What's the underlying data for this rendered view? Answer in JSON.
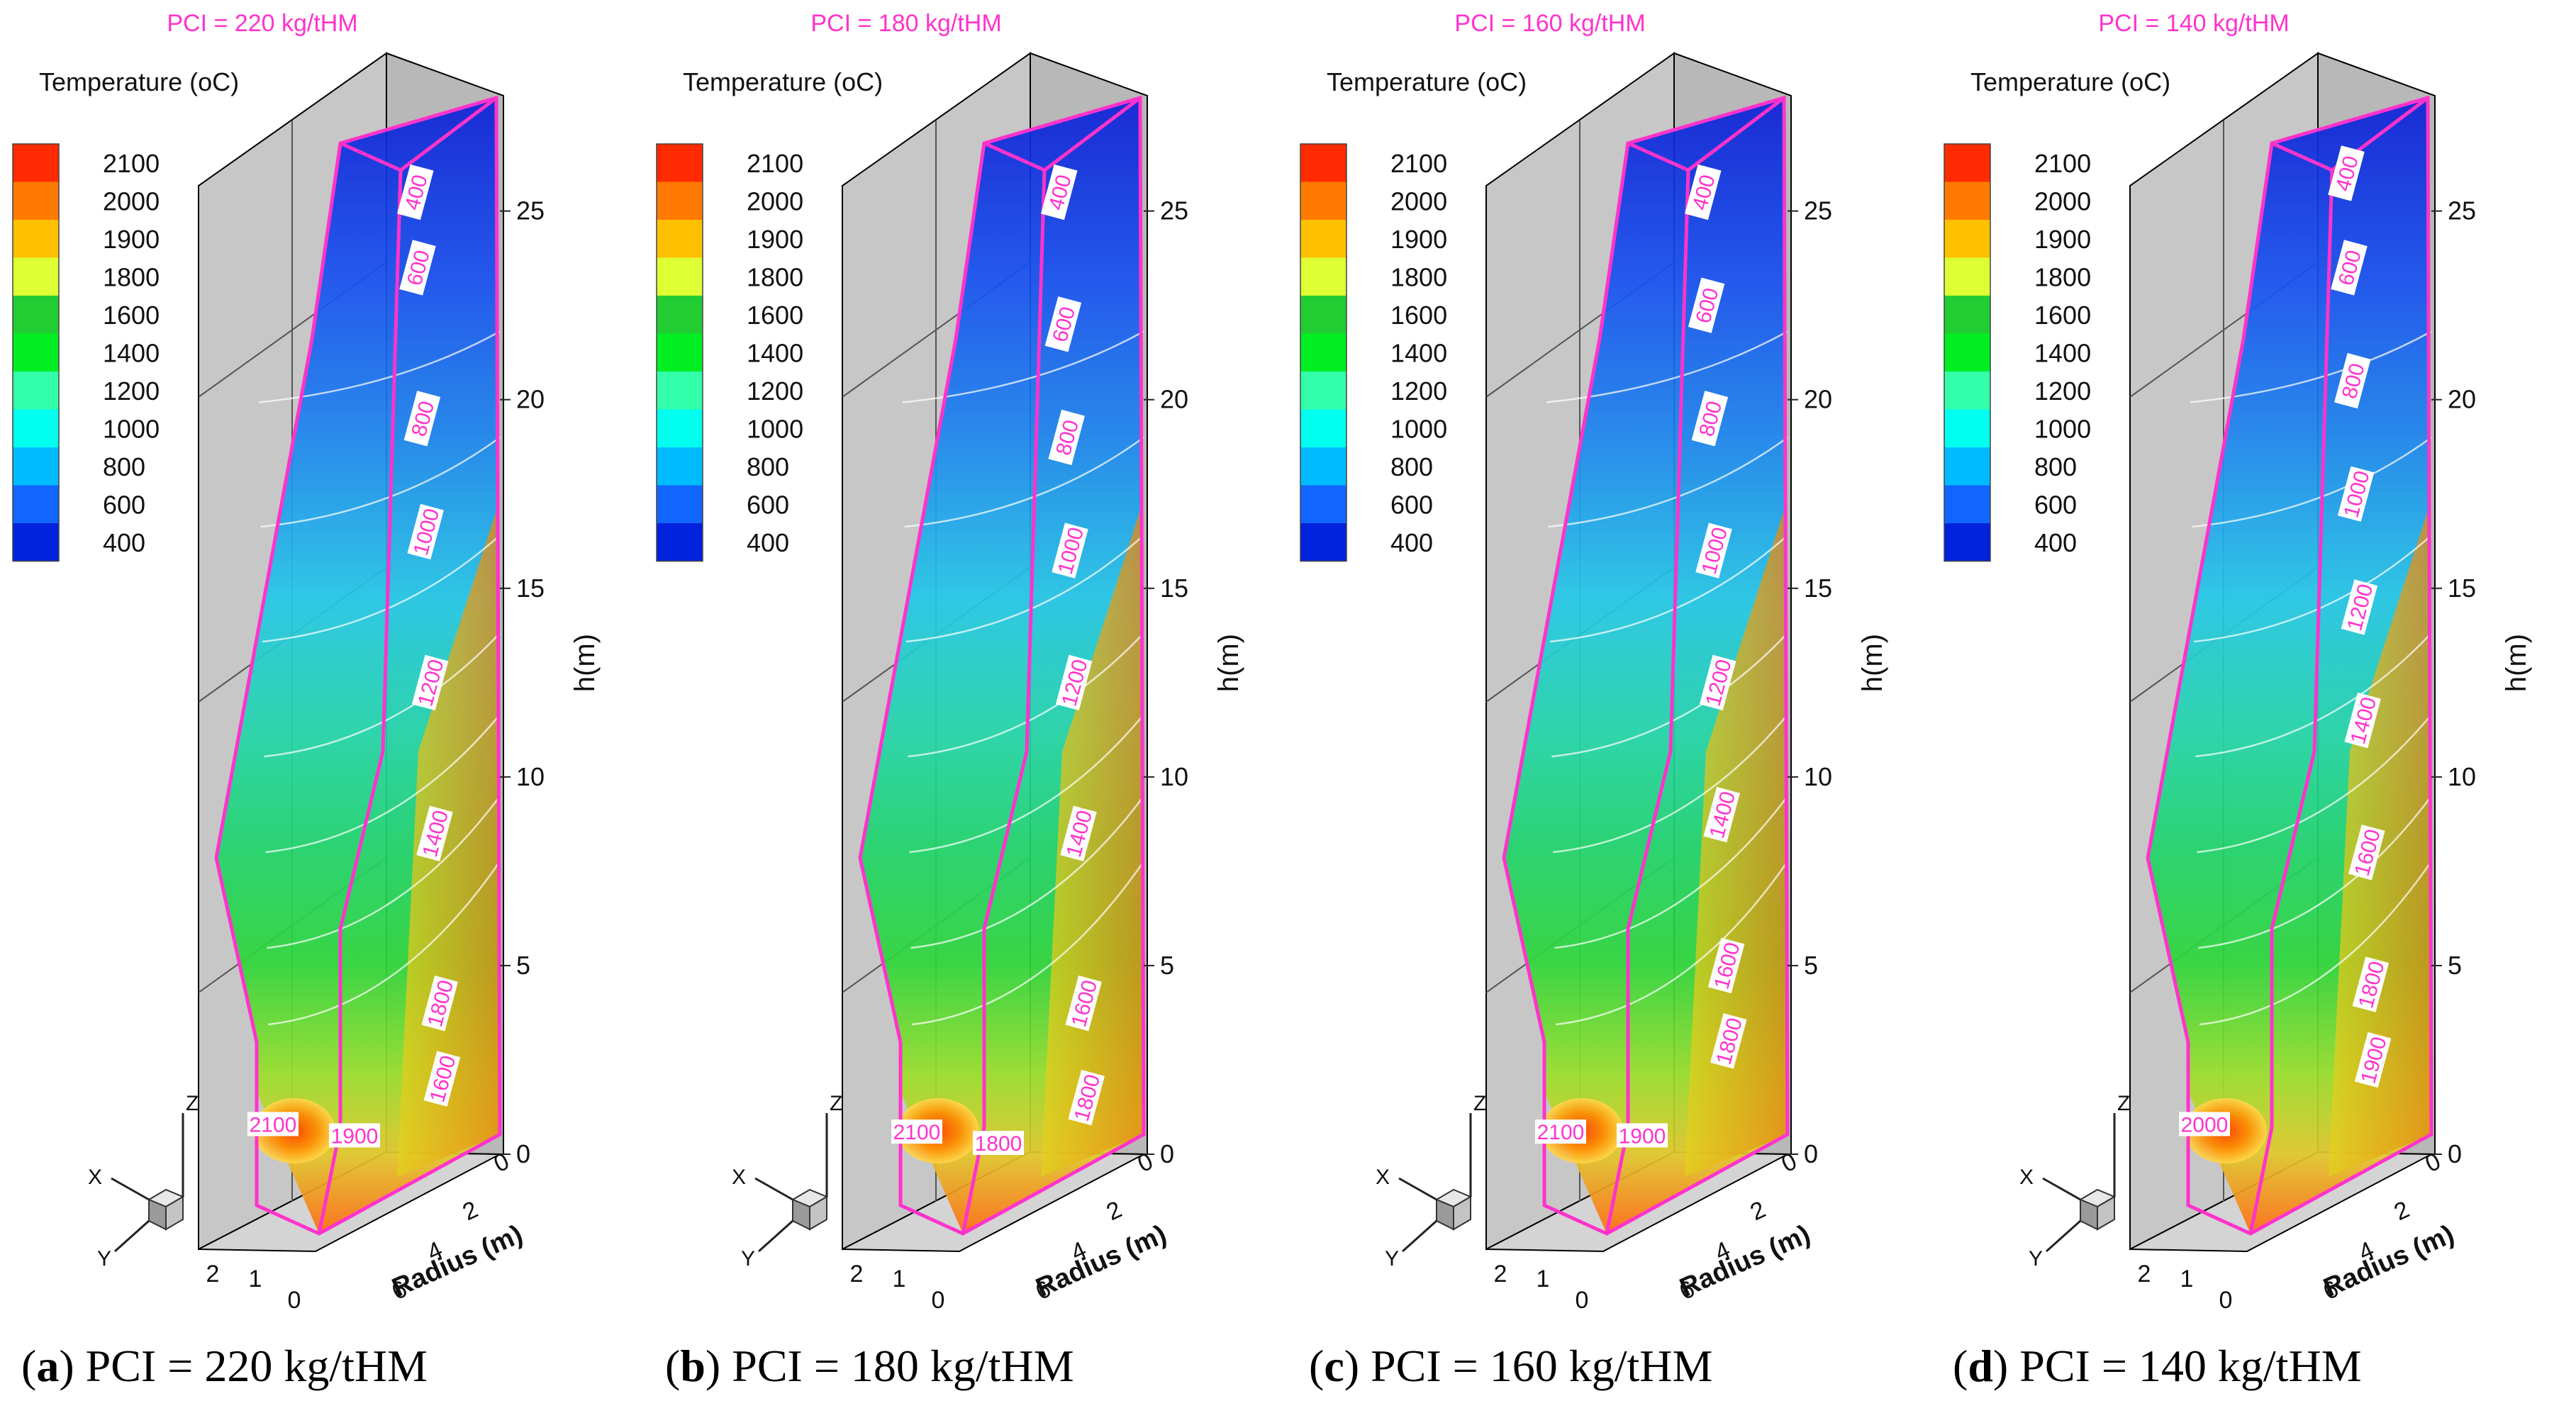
{
  "figure": {
    "colors": {
      "title": "#ff33cc",
      "outline": "#ff33cc",
      "label_text": "#ff33cc",
      "box_fill": "#c7c7c7",
      "axis_text": "#111111",
      "caption_text": "#000000"
    }
  },
  "chart_data": [
    {
      "type": "contour",
      "id": "a",
      "title": "PCI = 220 kg/tHM",
      "caption_letter": "a",
      "caption_text": ") PCI = 220 kg/tHM",
      "colorbar": {
        "title": "Temperature (oC)",
        "levels": [
          "2100",
          "2000",
          "1900",
          "1800",
          "1600",
          "1400",
          "1200",
          "1000",
          "800",
          "600",
          "400"
        ],
        "colors": [
          "#ff2a00",
          "#ff7a00",
          "#ffc000",
          "#ddff33",
          "#22cc33",
          "#00ee22",
          "#33ffaa",
          "#00ffee",
          "#00bbff",
          "#1166ff",
          "#0022dd"
        ]
      },
      "zlabel": "h(m)",
      "zticks": [
        "0",
        "5",
        "10",
        "15",
        "20",
        "25"
      ],
      "zlim": [
        0,
        28
      ],
      "xlabel": "Radius (m)",
      "xticks": [
        "0",
        "2",
        "4",
        "6"
      ],
      "yticks": [
        "2",
        "1",
        "0"
      ],
      "triad": [
        "Z",
        "X",
        "Y"
      ],
      "contour_labels": [
        {
          "text": "400",
          "h": 25.5
        },
        {
          "text": "600",
          "h": 23.5
        },
        {
          "text": "800",
          "h": 19.5
        },
        {
          "text": "1000",
          "h": 16.5
        },
        {
          "text": "1200",
          "h": 12.5
        },
        {
          "text": "1400",
          "h": 8.5
        },
        {
          "text": "1800",
          "h": 4.0
        },
        {
          "text": "1600",
          "h": 2.0
        },
        {
          "text": "1900",
          "h": 0.5
        },
        {
          "text": "2100",
          "h": 0.8
        }
      ]
    },
    {
      "type": "contour",
      "id": "b",
      "title": "PCI = 180 kg/tHM",
      "caption_letter": "b",
      "caption_text": ") PCI = 180 kg/tHM",
      "colorbar": {
        "title": "Temperature (oC)",
        "levels": [
          "2100",
          "2000",
          "1900",
          "1800",
          "1600",
          "1400",
          "1200",
          "1000",
          "800",
          "600",
          "400"
        ],
        "colors": [
          "#ff2a00",
          "#ff7a00",
          "#ffc000",
          "#ddff33",
          "#22cc33",
          "#00ee22",
          "#33ffaa",
          "#00ffee",
          "#00bbff",
          "#1166ff",
          "#0022dd"
        ]
      },
      "zlabel": "h(m)",
      "zticks": [
        "0",
        "5",
        "10",
        "15",
        "20",
        "25"
      ],
      "zlim": [
        0,
        28
      ],
      "xlabel": "Radius (m)",
      "xticks": [
        "0",
        "2",
        "4",
        "6"
      ],
      "yticks": [
        "2",
        "1",
        "0"
      ],
      "triad": [
        "Z",
        "X",
        "Y"
      ],
      "contour_labels": [
        {
          "text": "400",
          "h": 25.5
        },
        {
          "text": "600",
          "h": 22.0
        },
        {
          "text": "800",
          "h": 19.0
        },
        {
          "text": "1000",
          "h": 16.0
        },
        {
          "text": "1200",
          "h": 12.5
        },
        {
          "text": "1400",
          "h": 8.5
        },
        {
          "text": "1600",
          "h": 4.0
        },
        {
          "text": "1800",
          "h": 1.5
        },
        {
          "text": "1800",
          "h": 0.3
        },
        {
          "text": "2100",
          "h": 0.6
        }
      ]
    },
    {
      "type": "contour",
      "id": "c",
      "title": "PCI = 160 kg/tHM",
      "caption_letter": "c",
      "caption_text": ") PCI = 160 kg/tHM",
      "colorbar": {
        "title": "Temperature (oC)",
        "levels": [
          "2100",
          "2000",
          "1900",
          "1800",
          "1600",
          "1400",
          "1200",
          "1000",
          "800",
          "600",
          "400"
        ],
        "colors": [
          "#ff2a00",
          "#ff7a00",
          "#ffc000",
          "#ddff33",
          "#22cc33",
          "#00ee22",
          "#33ffaa",
          "#00ffee",
          "#00bbff",
          "#1166ff",
          "#0022dd"
        ]
      },
      "zlabel": "h(m)",
      "zticks": [
        "0",
        "5",
        "10",
        "15",
        "20",
        "25"
      ],
      "zlim": [
        0,
        28
      ],
      "xlabel": "Radius (m)",
      "xticks": [
        "0",
        "2",
        "4",
        "6"
      ],
      "yticks": [
        "2",
        "1",
        "0"
      ],
      "triad": [
        "Z",
        "X",
        "Y"
      ],
      "contour_labels": [
        {
          "text": "400",
          "h": 25.5
        },
        {
          "text": "600",
          "h": 22.5
        },
        {
          "text": "800",
          "h": 19.5
        },
        {
          "text": "1000",
          "h": 16.0
        },
        {
          "text": "1200",
          "h": 12.5
        },
        {
          "text": "1400",
          "h": 9.0
        },
        {
          "text": "1600",
          "h": 5.0
        },
        {
          "text": "1800",
          "h": 3.0
        },
        {
          "text": "1900",
          "h": 0.5
        },
        {
          "text": "2100",
          "h": 0.6
        }
      ]
    },
    {
      "type": "contour",
      "id": "d",
      "title": "PCI = 140 kg/tHM",
      "caption_letter": "d",
      "caption_text": ") PCI = 140 kg/tHM",
      "colorbar": {
        "title": "Temperature (oC)",
        "levels": [
          "2100",
          "2000",
          "1900",
          "1800",
          "1600",
          "1400",
          "1200",
          "1000",
          "800",
          "600",
          "400"
        ],
        "colors": [
          "#ff2a00",
          "#ff7a00",
          "#ffc000",
          "#ddff33",
          "#22cc33",
          "#00ee22",
          "#33ffaa",
          "#00ffee",
          "#00bbff",
          "#1166ff",
          "#0022dd"
        ]
      },
      "zlabel": "h(m)",
      "zticks": [
        "0",
        "5",
        "10",
        "15",
        "20",
        "25"
      ],
      "zlim": [
        0,
        28
      ],
      "xlabel": "Radius (m)",
      "xticks": [
        "0",
        "2",
        "4",
        "6"
      ],
      "yticks": [
        "2",
        "1",
        "0"
      ],
      "triad": [
        "Z",
        "X",
        "Y"
      ],
      "contour_labels": [
        {
          "text": "400",
          "h": 26.0
        },
        {
          "text": "600",
          "h": 23.5
        },
        {
          "text": "800",
          "h": 20.5
        },
        {
          "text": "1000",
          "h": 17.5
        },
        {
          "text": "1200",
          "h": 14.5
        },
        {
          "text": "1400",
          "h": 11.5
        },
        {
          "text": "1600",
          "h": 8.0
        },
        {
          "text": "1800",
          "h": 4.5
        },
        {
          "text": "1900",
          "h": 2.5
        },
        {
          "text": "2000",
          "h": 0.8
        }
      ]
    }
  ]
}
